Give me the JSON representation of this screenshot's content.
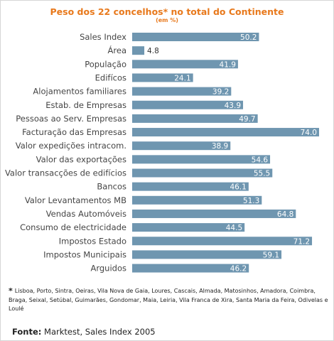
{
  "chart_data": {
    "type": "bar",
    "orientation": "horizontal",
    "title": "Peso dos 22 concelhos* no total do Continente",
    "subtitle": "(em %)",
    "categories": [
      "Sales Index",
      "Área",
      "População",
      "Edifícos",
      "Alojamentos familiares",
      "Estab. de Empresas",
      "Pessoas ao Serv. Empresas",
      "Facturação das Empresas",
      "Valor expedições intracom.",
      "Valor das exportações",
      "Valor transacções de edifícios",
      "Bancos",
      "Valor Levantamentos MB",
      "Vendas Automóveis",
      "Consumo de electricidade",
      "Impostos Estado",
      "Impostos Municipais",
      "Arguidos"
    ],
    "values": [
      50.2,
      4.8,
      41.9,
      24.1,
      39.2,
      43.9,
      49.7,
      74.0,
      38.9,
      54.6,
      55.5,
      46.1,
      51.3,
      64.8,
      44.5,
      71.2,
      59.1,
      46.2
    ],
    "value_labels": [
      "50.2",
      "4.8",
      "41.9",
      "24.1",
      "39.2",
      "43.9",
      "49.7",
      "74.0",
      "38.9",
      "54.6",
      "55.5",
      "46.1",
      "51.3",
      "64.8",
      "44.5",
      "71.2",
      "59.1",
      "46.2"
    ],
    "xlim": [
      0,
      74.0
    ],
    "bar_color": "#6f96b0",
    "label_color_inside": "#ffffff",
    "label_color_outside": "#333333",
    "grid": false,
    "legend": "none"
  },
  "footnote": {
    "marker": "*",
    "text": "Lisboa, Porto, Sintra, Oeiras, Vila Nova de Gaia, Loures, Cascais, Almada, Matosinhos, Amadora, Coimbra, Braga, Seixal, Setúbal, Guimarães, Gondomar, Maia, Leiria, Vila Franca de Xira, Santa Maria da Feira, Odivelas e Loulé"
  },
  "source": {
    "label": "Fonte:",
    "text": "Marktest, Sales Index 2005"
  },
  "colors": {
    "title": "#e8791c"
  }
}
